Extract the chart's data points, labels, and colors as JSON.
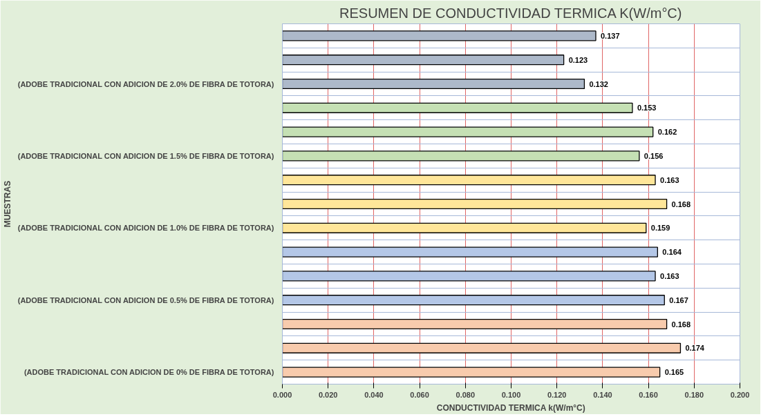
{
  "chart_data": {
    "type": "bar",
    "orientation": "horizontal",
    "title": "RESUMEN DE CONDUCTIVIDAD TERMICA K(W/m°C)",
    "xlabel": "CONDUCTIVIDAD TERMICA k(W/m°C)",
    "ylabel": "MUESTRAS",
    "categories": [
      null,
      null,
      "(ADOBE TRADICIONAL CON ADICION DE 2.0% DE FIBRA DE TOTORA)",
      null,
      null,
      "(ADOBE TRADICIONAL CON ADICION DE 1.5% DE FIBRA DE TOTORA)",
      null,
      null,
      "(ADOBE TRADICIONAL CON ADICION DE 1.0% DE FIBRA DE TOTORA)",
      null,
      null,
      "(ADOBE TRADICIONAL CON ADICION DE 0.5% DE FIBRA DE TOTORA)",
      null,
      null,
      "(ADOBE TRADICIONAL CON ADICION DE 0% DE FIBRA DE TOTORA)"
    ],
    "values": [
      0.137,
      0.123,
      0.132,
      0.153,
      0.162,
      0.156,
      0.163,
      0.168,
      0.159,
      0.164,
      0.163,
      0.167,
      0.168,
      0.174,
      0.165
    ],
    "colors": [
      "#adb9ca",
      "#adb9ca",
      "#adb9ca",
      "#c5e0b4",
      "#c5e0b4",
      "#c5e0b4",
      "#ffe699",
      "#ffe699",
      "#ffe699",
      "#b4c7e7",
      "#b4c7e7",
      "#b4c7e7",
      "#f8cbad",
      "#f8cbad",
      "#f8cbad"
    ],
    "xlim": [
      0,
      0.2
    ],
    "xticks": [
      {
        "value": 0,
        "label": "0.000"
      },
      {
        "value": 0.02,
        "label": "0.020"
      },
      {
        "value": 0.04,
        "label": "0.040"
      },
      {
        "value": 0.06,
        "label": "0.060"
      },
      {
        "value": 0.08,
        "label": "0.080"
      },
      {
        "value": 0.1,
        "label": "0.100"
      },
      {
        "value": 0.12,
        "label": "0.120"
      },
      {
        "value": 0.14,
        "label": "0.140"
      },
      {
        "value": 0.16,
        "label": "0.160"
      },
      {
        "value": 0.18,
        "label": "0.180"
      },
      {
        "value": 0.2,
        "label": "0.200"
      }
    ],
    "data_labels": true,
    "grid": true
  }
}
